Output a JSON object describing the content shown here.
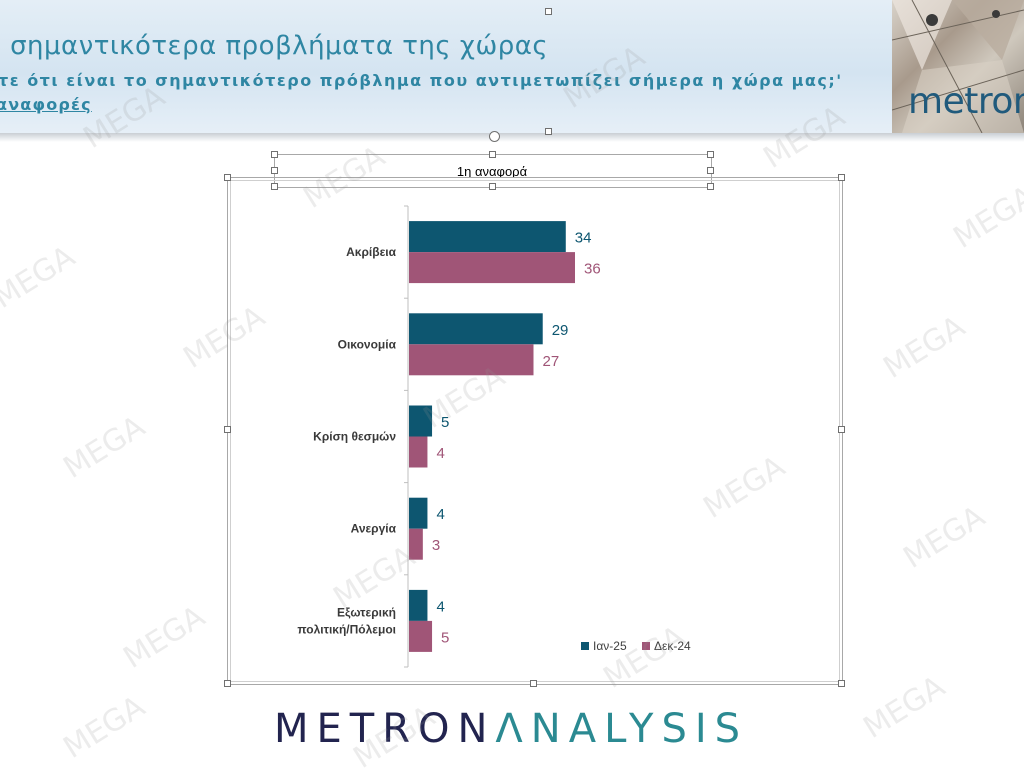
{
  "header": {
    "title": "ι σημαντικότερα προβλήματα της χώρας",
    "question": "τε ότι είναι το σημαντικότερο πρόβλημα που αντιμετωπίζει σήμερα η χώρα μας;'",
    "subtitle": "αναφορές",
    "logo": "metron"
  },
  "footer": {
    "logo_left": "METRON",
    "logo_right": "ΛNALYSIS"
  },
  "watermark": "MEGA",
  "colors": {
    "series_jan": "#0d5670",
    "series_dec": "#a05577",
    "header_text": "#2f86a3"
  },
  "chart_data": {
    "type": "bar",
    "orientation": "horizontal",
    "title": "1η αναφορά",
    "categories": [
      "Ακρίβεια",
      "Οικονομία",
      "Κρίση θεσμών",
      "Ανεργία",
      "Εξωτερική πολιτική/Πόλεμοι"
    ],
    "category_lines": [
      [
        "Ακρίβεια"
      ],
      [
        "Οικονομία"
      ],
      [
        "Κρίση θεσμών"
      ],
      [
        "Ανεργία"
      ],
      [
        "Εξωτερική",
        "πολιτική/Πόλεμοι"
      ]
    ],
    "series": [
      {
        "name": "Ιαν-25",
        "values": [
          34,
          29,
          5,
          4,
          4
        ],
        "color": "#0d5670"
      },
      {
        "name": "Δεκ-24",
        "values": [
          36,
          27,
          4,
          3,
          5
        ],
        "color": "#a05577"
      }
    ],
    "legend": "bottom-right",
    "data_labels": true,
    "grid": false
  }
}
